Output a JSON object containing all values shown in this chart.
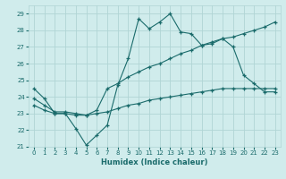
{
  "xlabel": "Humidex (Indice chaleur)",
  "xlim": [
    -0.5,
    23.5
  ],
  "ylim": [
    21.0,
    29.5
  ],
  "yticks": [
    21,
    22,
    23,
    24,
    25,
    26,
    27,
    28,
    29
  ],
  "xticks": [
    0,
    1,
    2,
    3,
    4,
    5,
    6,
    7,
    8,
    9,
    10,
    11,
    12,
    13,
    14,
    15,
    16,
    17,
    18,
    19,
    20,
    21,
    22,
    23
  ],
  "bg_color": "#d0ecec",
  "grid_color": "#b0d5d5",
  "line_color": "#1a6b6b",
  "line1_x": [
    0,
    1,
    2,
    3,
    4,
    5,
    6,
    7,
    8,
    9,
    10,
    11,
    12,
    13,
    14,
    15,
    16,
    17,
    18,
    19,
    20,
    21,
    22,
    23
  ],
  "line1_y": [
    24.5,
    23.9,
    23.0,
    23.0,
    22.1,
    21.1,
    21.7,
    22.3,
    24.7,
    26.3,
    28.7,
    28.1,
    28.5,
    29.0,
    27.9,
    27.8,
    27.1,
    27.2,
    27.5,
    27.0,
    25.3,
    24.8,
    24.3,
    24.3
  ],
  "line2_x": [
    0,
    1,
    2,
    3,
    4,
    5,
    6,
    7,
    8,
    9,
    10,
    11,
    12,
    13,
    14,
    15,
    16,
    17,
    18,
    19,
    20,
    21,
    22,
    23
  ],
  "line2_y": [
    23.9,
    23.5,
    23.1,
    23.1,
    23.0,
    22.9,
    23.2,
    24.5,
    24.8,
    25.2,
    25.5,
    25.8,
    26.0,
    26.3,
    26.6,
    26.8,
    27.1,
    27.3,
    27.5,
    27.6,
    27.8,
    28.0,
    28.2,
    28.5
  ],
  "line3_x": [
    0,
    1,
    2,
    3,
    4,
    5,
    6,
    7,
    8,
    9,
    10,
    11,
    12,
    13,
    14,
    15,
    16,
    17,
    18,
    19,
    20,
    21,
    22,
    23
  ],
  "line3_y": [
    23.5,
    23.2,
    23.0,
    23.0,
    22.9,
    22.9,
    23.0,
    23.1,
    23.3,
    23.5,
    23.6,
    23.8,
    23.9,
    24.0,
    24.1,
    24.2,
    24.3,
    24.4,
    24.5,
    24.5,
    24.5,
    24.5,
    24.5,
    24.5
  ]
}
